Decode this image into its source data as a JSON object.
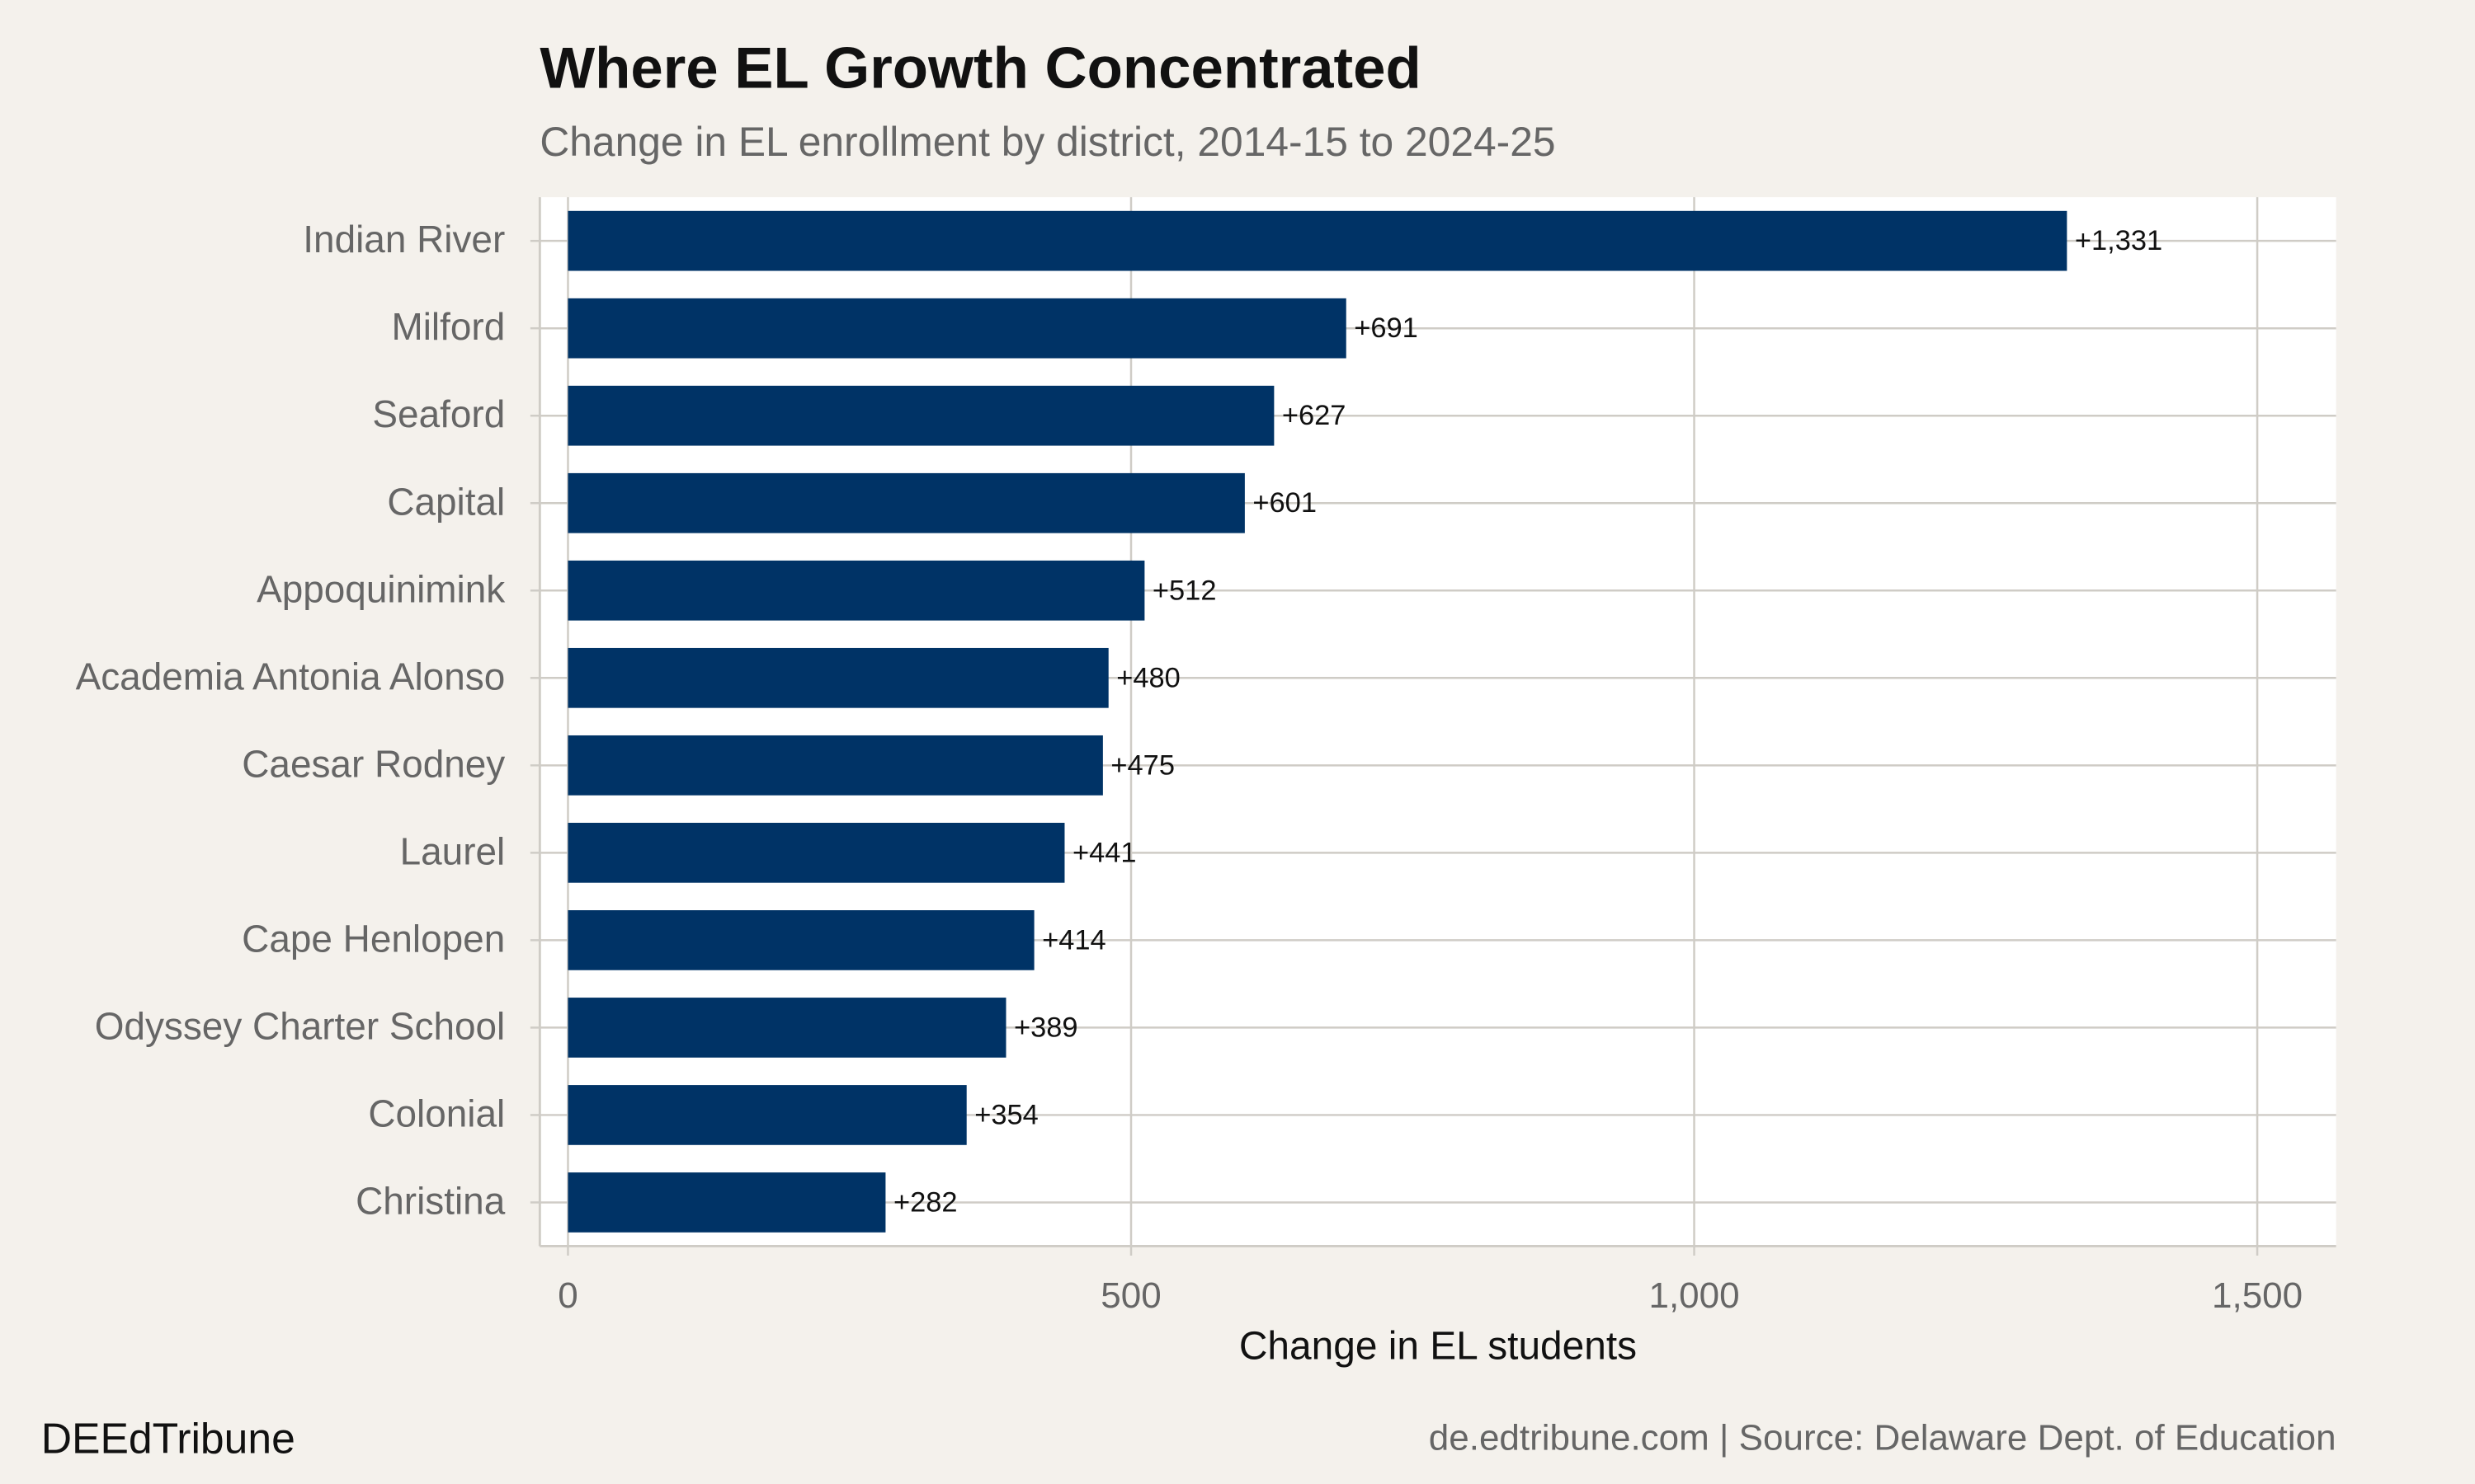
{
  "chart_data": {
    "type": "bar",
    "orientation": "horizontal",
    "title": "Where EL Growth Concentrated",
    "subtitle": "Change in EL enrollment by district, 2014-15 to 2024-25",
    "x_label": "Change in EL students",
    "categories": [
      "Indian River",
      "Milford",
      "Seaford",
      "Capital",
      "Appoquinimink",
      "Academia Antonia Alonso",
      "Caesar Rodney",
      "Laurel",
      "Cape Henlopen",
      "Odyssey Charter School",
      "Colonial",
      "Christina"
    ],
    "values": [
      1331,
      691,
      627,
      601,
      512,
      480,
      475,
      441,
      414,
      389,
      354,
      282
    ],
    "value_labels": [
      "+1,331",
      "+691",
      "+627",
      "+601",
      "+512",
      "+480",
      "+475",
      "+441",
      "+414",
      "+389",
      "+354",
      "+282"
    ],
    "color": "#003366",
    "xlim": [
      -25,
      1570
    ],
    "xticks": [
      0,
      500,
      {
        "value": 1000,
        "label": "1,000"
      },
      {
        "value": 1500,
        "label": "1,500"
      }
    ],
    "grid": true,
    "footer_left": "DEEdTribune",
    "footer_right": "de.edtribune.com | Source: Delaware Dept. of Education"
  }
}
